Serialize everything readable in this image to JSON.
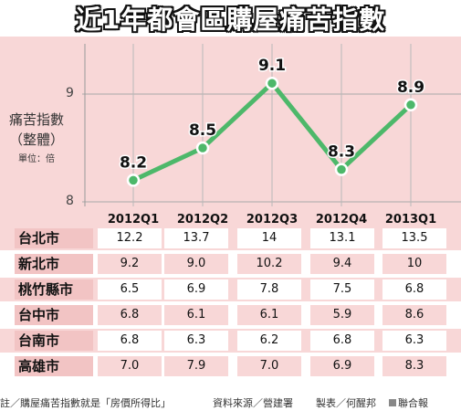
{
  "title": "近1年都會區購屋痛苦指數",
  "chart_data": {
    "type": "line",
    "categories": [
      "2012Q1",
      "2012Q2",
      "2012Q3",
      "2012Q4",
      "2013Q1"
    ],
    "values": [
      8.2,
      8.5,
      9.1,
      8.3,
      8.9
    ],
    "data_labels": [
      "8.2",
      "8.5",
      "9.1",
      "8.3",
      "8.9"
    ],
    "ylabel": "痛苦指數",
    "ylabel_paren": "（整體）",
    "unit": "單位：倍",
    "ylim": [
      8,
      9.3
    ],
    "yticks": [
      "9",
      "8"
    ],
    "grid": true,
    "line_color": "#4db86a",
    "marker_color": "#4db86a"
  },
  "table": {
    "columns": [
      "2012Q1",
      "2012Q2",
      "2012Q3",
      "2012Q4",
      "2013Q1"
    ],
    "rows": [
      {
        "name": "台北市",
        "values": [
          "12.2",
          "13.7",
          "14",
          "13.1",
          "13.5"
        ]
      },
      {
        "name": "新北市",
        "values": [
          "9.2",
          "9.0",
          "10.2",
          "9.4",
          "10"
        ]
      },
      {
        "name": "桃竹縣市",
        "values": [
          "6.5",
          "6.9",
          "7.8",
          "7.5",
          "6.8"
        ]
      },
      {
        "name": "台中市",
        "values": [
          "6.8",
          "6.1",
          "6.1",
          "5.9",
          "8.6"
        ]
      },
      {
        "name": "台南市",
        "values": [
          "6.8",
          "6.3",
          "6.2",
          "6.8",
          "6.3"
        ]
      },
      {
        "name": "高雄市",
        "values": [
          "7.0",
          "7.9",
          "7.0",
          "6.9",
          "8.3"
        ]
      }
    ]
  },
  "footnote": {
    "note": "註／購屋痛苦指數就是「房價所得比」",
    "source": "資料來源／營建署",
    "maker": "製表／何醒邦",
    "credit": "聯合報"
  },
  "colors": {
    "background": "#f8d7d7",
    "row_label": "#f2c4c4",
    "line": "#4db86a"
  }
}
